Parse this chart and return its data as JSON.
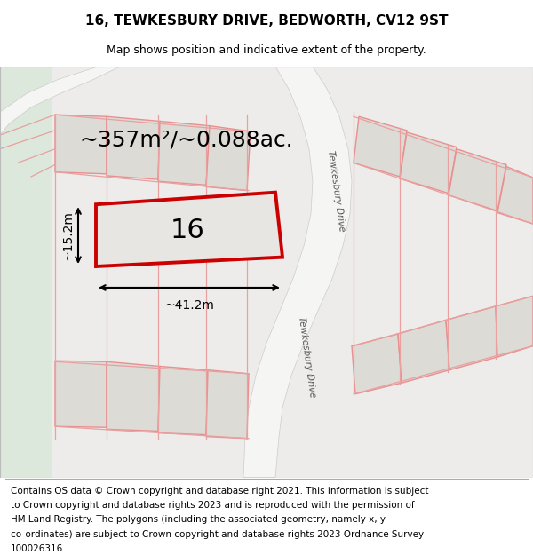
{
  "title_line1": "16, TEWKESBURY DRIVE, BEDWORTH, CV12 9ST",
  "title_line2": "Map shows position and indicative extent of the property.",
  "area_text": "~357m²/~0.088ac.",
  "number_label": "16",
  "dim_width": "~41.2m",
  "dim_height": "~15.2m",
  "road_label": "Tewkesbury Drive",
  "road_label2": "Tewkesbury Drive",
  "footer_lines": [
    "Contains OS data © Crown copyright and database right 2021. This information is subject",
    "to Crown copyright and database rights 2023 and is reproduced with the permission of",
    "HM Land Registry. The polygons (including the associated geometry, namely x, y",
    "co-ordinates) are subject to Crown copyright and database rights 2023 Ordnance Survey",
    "100026316."
  ],
  "bg_color": "#edecea",
  "left_edge_color": "#dce8dc",
  "road_color": "#f5f5f3",
  "plot_fill": "#e8e6e2",
  "plot_edge": "#cc0000",
  "neighbor_fill": "#dddbd6",
  "neighbor_edge": "#e89090",
  "line_color": "#e8a0a0",
  "dim_line_color": "#000000",
  "title_fontsize": 11,
  "subtitle_fontsize": 9,
  "area_fontsize": 18,
  "number_fontsize": 22,
  "footer_fontsize": 7.5
}
